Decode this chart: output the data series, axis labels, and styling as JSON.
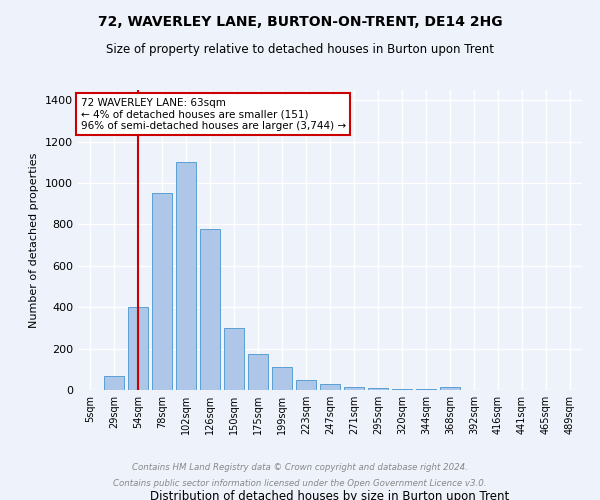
{
  "title1": "72, WAVERLEY LANE, BURTON-ON-TRENT, DE14 2HG",
  "title2": "Size of property relative to detached houses in Burton upon Trent",
  "xlabel": "Distribution of detached houses by size in Burton upon Trent",
  "ylabel": "Number of detached properties",
  "categories": [
    "5sqm",
    "29sqm",
    "54sqm",
    "78sqm",
    "102sqm",
    "126sqm",
    "150sqm",
    "175sqm",
    "199sqm",
    "223sqm",
    "247sqm",
    "271sqm",
    "295sqm",
    "320sqm",
    "344sqm",
    "368sqm",
    "392sqm",
    "416sqm",
    "441sqm",
    "465sqm",
    "489sqm"
  ],
  "values": [
    0,
    70,
    400,
    950,
    1100,
    780,
    300,
    175,
    110,
    50,
    30,
    15,
    10,
    5,
    5,
    15,
    2,
    0,
    0,
    0,
    0
  ],
  "bar_color": "#aec6e8",
  "bar_edge_color": "#5a9fd4",
  "annotation_text": "72 WAVERLEY LANE: 63sqm\n← 4% of detached houses are smaller (151)\n96% of semi-detached houses are larger (3,744) →",
  "annotation_box_color": "#ffffff",
  "annotation_box_edge": "#cc0000",
  "red_line_color": "#cc0000",
  "footer1": "Contains HM Land Registry data © Crown copyright and database right 2024.",
  "footer2": "Contains public sector information licensed under the Open Government Licence v3.0.",
  "ylim": [
    0,
    1450
  ],
  "background_color": "#eef2fb",
  "grid_color": "#ffffff",
  "yticks": [
    0,
    200,
    400,
    600,
    800,
    1000,
    1200,
    1400
  ]
}
